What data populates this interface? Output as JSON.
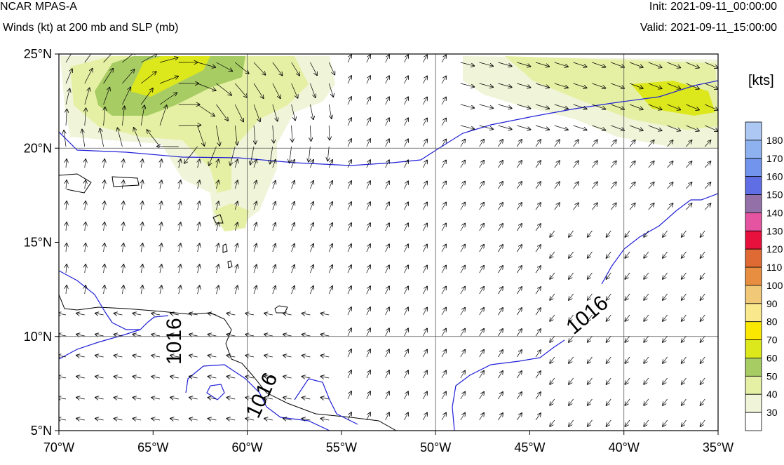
{
  "header": {
    "model": "NCAR MPAS-A",
    "field": "Winds (kt) at 200 mb and SLP (mb)",
    "init": "Init: 2021-09-11_00:00:00",
    "valid": "Valid: 2021-09-11_15:00:00"
  },
  "map": {
    "extent": {
      "lon": [
        -70,
        -35
      ],
      "lat": [
        5,
        25
      ]
    },
    "lat_ticks": [
      {
        "value": 25,
        "label": "25°N"
      },
      {
        "value": 20,
        "label": "20°N"
      },
      {
        "value": 15,
        "label": "15°N"
      },
      {
        "value": 10,
        "label": "10°N"
      },
      {
        "value": 5,
        "label": "5°N"
      }
    ],
    "lon_ticks": [
      {
        "value": -70,
        "label": "70°W"
      },
      {
        "value": -65,
        "label": "65°W"
      },
      {
        "value": -60,
        "label": "60°W"
      },
      {
        "value": -55,
        "label": "55°W"
      },
      {
        "value": -50,
        "label": "50°W"
      },
      {
        "value": -45,
        "label": "45°W"
      },
      {
        "value": -40,
        "label": "40°W"
      },
      {
        "value": -35,
        "label": "35°W"
      }
    ],
    "gridlines": {
      "lons": [
        -60,
        -50,
        -40
      ],
      "lats": [
        20,
        10
      ]
    },
    "isobar_label": "1016",
    "isobar_color": "#2020d8",
    "coast_color": "#000000"
  },
  "colorbar": {
    "units": "[kts]",
    "levels": [
      {
        "label": "180",
        "color": "#aec8f4"
      },
      {
        "label": "170",
        "color": "#8eb2f0"
      },
      {
        "label": "160",
        "color": "#7394ec"
      },
      {
        "label": "150",
        "color": "#5f6ee4"
      },
      {
        "label": "140",
        "color": "#9370a8"
      },
      {
        "label": "130",
        "color": "#e454a0"
      },
      {
        "label": "120",
        "color": "#e8103c"
      },
      {
        "label": "110",
        "color": "#e06a34"
      },
      {
        "label": "100",
        "color": "#e88e40"
      },
      {
        "label": "90",
        "color": "#f0c878"
      },
      {
        "label": "80",
        "color": "#fae88c"
      },
      {
        "label": "70",
        "color": "#fae800"
      },
      {
        "label": "60",
        "color": "#dce81c"
      },
      {
        "label": "50",
        "color": "#a8cc64"
      },
      {
        "label": "40",
        "color": "#e6f0a4"
      },
      {
        "label": "30",
        "color": "#f0f4d8"
      },
      {
        "label": "",
        "color": "#ffffff"
      }
    ]
  }
}
